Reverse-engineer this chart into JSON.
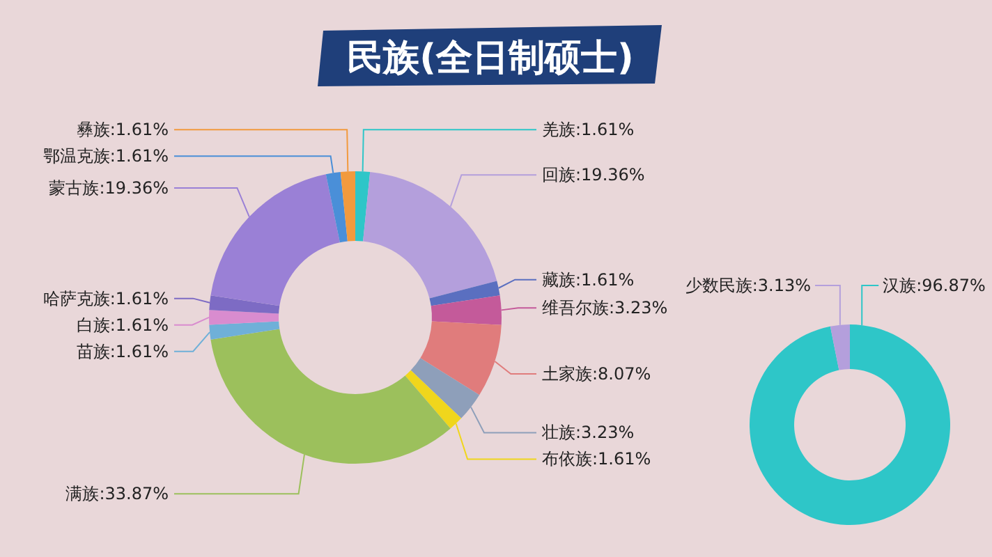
{
  "chart_data": [
    {
      "type": "donut",
      "title": "民族(全日制硕士)",
      "categories": [
        "羌族",
        "回族",
        "藏族",
        "维吾尔族",
        "土家族",
        "壮族",
        "布依族",
        "满族",
        "苗族",
        "白族",
        "哈萨克族",
        "蒙古族",
        "鄂温克族",
        "彝族"
      ],
      "values": [
        1.61,
        19.36,
        1.61,
        3.23,
        8.07,
        3.23,
        1.61,
        33.87,
        1.61,
        1.61,
        1.61,
        19.36,
        1.61,
        1.61
      ],
      "value_labels": [
        "1.61%",
        "19.36%",
        "1.61%",
        "3.23%",
        "8.07%",
        "3.23%",
        "1.61%",
        "33.87%",
        "1.61%",
        "1.61%",
        "1.61%",
        "19.36%",
        "1.61%",
        "1.61%"
      ],
      "colors": [
        "#2ec6c8",
        "#b49fdc",
        "#5a6fc0",
        "#c45a9a",
        "#e07c7c",
        "#8e9fba",
        "#f0d61c",
        "#9cc05c",
        "#6fb0d8",
        "#d98ccf",
        "#7d6bc4",
        "#9a80d6",
        "#4a8fd8",
        "#f29a3e"
      ],
      "legend": false
    },
    {
      "type": "donut",
      "categories": [
        "汉族",
        "少数民族"
      ],
      "values": [
        96.87,
        3.13
      ],
      "value_labels": [
        "96.87%",
        "3.13%"
      ],
      "colors": [
        "#2ec6c8",
        "#b49fdc"
      ],
      "legend": false
    }
  ]
}
